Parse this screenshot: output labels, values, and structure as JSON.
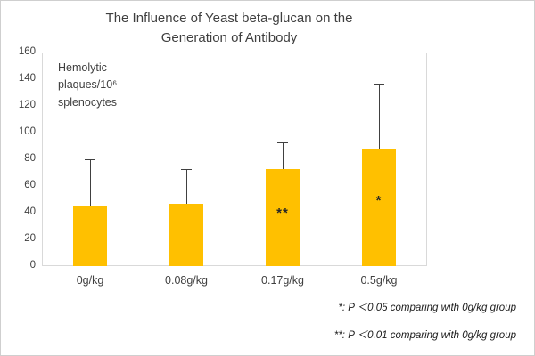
{
  "chart_data": {
    "type": "bar",
    "title": "The Influence of Yeast beta-glucan on the\nGeneration of Antibody",
    "unit_label": "Hemolytic\nplaques/10⁶\nsplenocytes",
    "categories": [
      "0g/kg",
      "0.08g/kg",
      "0.17g/kg",
      "0.5g/kg"
    ],
    "values": [
      45,
      47,
      73,
      88
    ],
    "error_top": [
      80,
      73,
      93,
      137
    ],
    "bar_annotations": [
      "",
      "",
      "**",
      "*"
    ],
    "ylim": [
      0,
      160
    ],
    "ytick_step": 20,
    "bar_color": "#FFC000",
    "axis_color": "#d9d9d9",
    "error_bar_color": "#404040",
    "grid": false,
    "legend": false,
    "xlabel": "",
    "ylabel": "Hemolytic plaques/10⁶ splenocytes"
  },
  "footnotes": [
    "*: P ＜0.05 comparing with 0g/kg group",
    "**: P ＜0.01 comparing with 0g/kg group"
  ]
}
